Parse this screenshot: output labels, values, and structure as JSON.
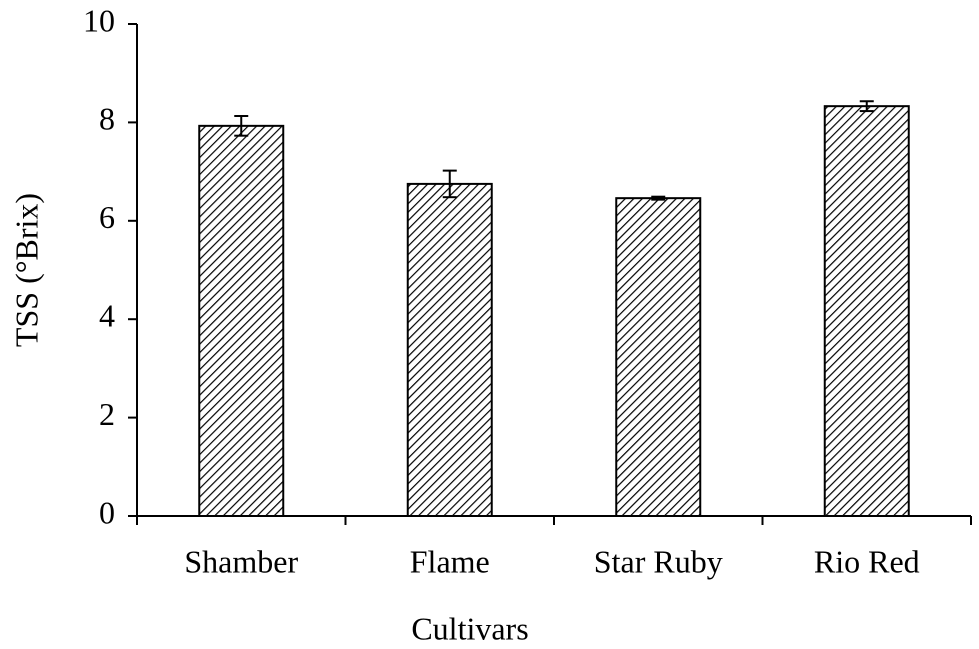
{
  "chart_data": {
    "type": "bar",
    "x_label": "Cultivars",
    "y_label": "TSS (°Brix)",
    "categories": [
      "Shamber",
      "Flame",
      "Star Ruby",
      "Rio Red"
    ],
    "values": [
      7.93,
      6.75,
      6.46,
      8.33
    ],
    "errors": [
      0.2,
      0.27,
      0.03,
      0.1
    ],
    "color": "#000000",
    "ylim": [
      0,
      10
    ],
    "yticks": [
      0,
      2,
      4,
      6,
      8,
      10
    ],
    "grid": false
  }
}
